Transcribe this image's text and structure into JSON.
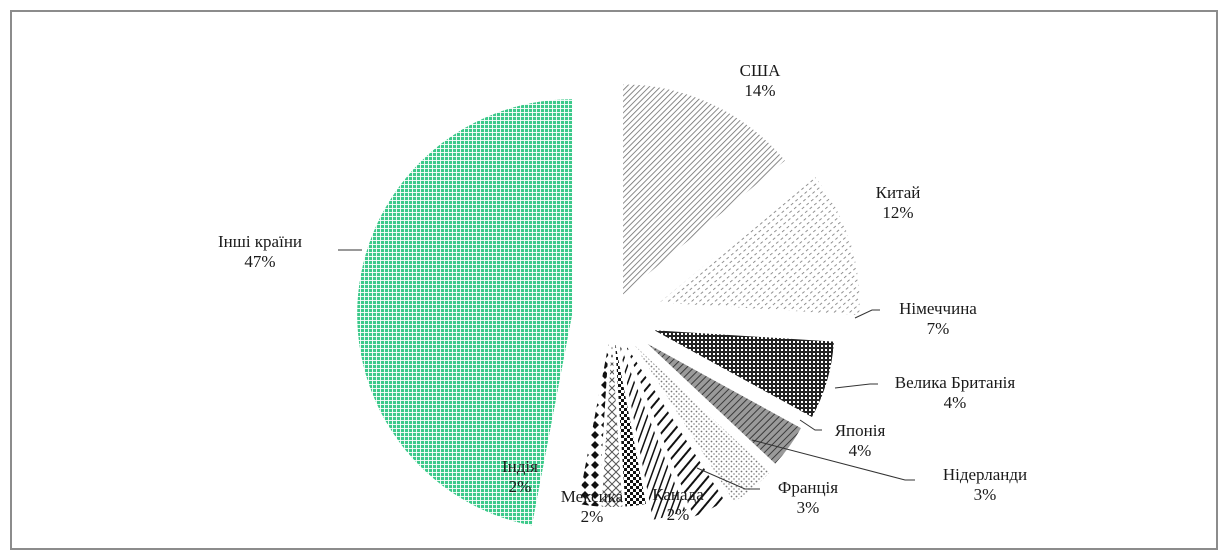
{
  "chart_data": {
    "type": "pie",
    "exploded": true,
    "slices": [
      {
        "label": "США",
        "value": 14,
        "value_label": "14%",
        "pattern": "diag-dense"
      },
      {
        "label": "Китай",
        "value": 12,
        "value_label": "12%",
        "pattern": "diag-dash"
      },
      {
        "label": "Німеччина",
        "value": 7,
        "value_label": "7%",
        "pattern": "grid-dark"
      },
      {
        "label": "Велика Британія",
        "value": 4,
        "value_label": "4%",
        "pattern": "diag-gray"
      },
      {
        "label": "Японія",
        "value": 4,
        "value_label": "4%",
        "pattern": "dots-light"
      },
      {
        "label": "Нідерланди",
        "value": 3,
        "value_label": "3%",
        "pattern": "diag-bold"
      },
      {
        "label": "Франція",
        "value": 3,
        "value_label": "3%",
        "pattern": "vertical"
      },
      {
        "label": "Канада",
        "value": 2,
        "value_label": "2%",
        "pattern": "check"
      },
      {
        "label": "Мексика",
        "value": 2,
        "value_label": "2%",
        "pattern": "crosshatch"
      },
      {
        "label": "Індія",
        "value": 2,
        "value_label": "2%",
        "pattern": "diamonds"
      },
      {
        "label": "Інші країни",
        "value": 47,
        "value_label": "47%",
        "pattern": "green-grid"
      }
    ],
    "colors": {
      "others": "#3cc98a",
      "ink": "#1a1a1a",
      "frame": "#8c8c8c"
    }
  }
}
